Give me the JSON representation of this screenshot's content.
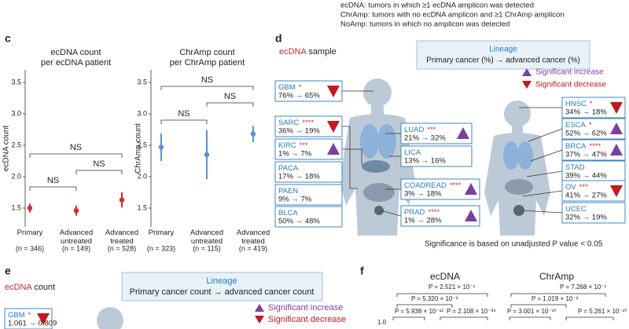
{
  "notes": [
    "ecDNA: tumors in which ≥1 ecDNA amplicon was detected",
    "ChrAmp: tumors with no ecDNA amplicon and ≥1 ChrAmp amplicon",
    "NoAmp: tumors in which no amplicon was detected"
  ],
  "panels": {
    "c": "c",
    "d": "d",
    "e": "e",
    "f": "f"
  },
  "chart_data": [
    {
      "type": "errorbar",
      "title": [
        "ecDNA count",
        "per ecDNA patient"
      ],
      "y_label": "ecDNA count",
      "color": "#e0262b",
      "categories": [
        "Primary",
        "Advanced untreated",
        "Advanced treated"
      ],
      "n_labels": [
        "(n = 346)",
        "(n = 149)",
        "(n = 528)"
      ],
      "values": [
        1.5,
        1.46,
        1.63
      ],
      "errors": [
        0.07,
        0.08,
        0.12
      ],
      "ylim": [
        1.2,
        3.7
      ],
      "yticks": [
        1.5,
        {
          "value": 2,
          "label": "2.0"
        },
        2.5,
        {
          "value": 3,
          "label": "3.0"
        },
        3.5
      ],
      "annotations": [
        "NS",
        "NS",
        "NS"
      ]
    },
    {
      "type": "errorbar",
      "title": [
        "ChrAmp count",
        "per ChrAmp patient"
      ],
      "y_label": "ChrAmp count",
      "color": "#5b8fd9",
      "categories": [
        "Primary",
        "Advanced untreated",
        "Advanced treated"
      ],
      "n_labels": [
        "(n = 323)",
        "(n = 115)",
        "(n = 419)"
      ],
      "values": [
        2.47,
        2.35,
        2.68
      ],
      "errors": [
        0.22,
        0.39,
        0.13
      ],
      "ylim": [
        1.2,
        3.7
      ],
      "yticks": [
        1.5,
        {
          "value": 2,
          "label": "2.0"
        },
        2.5,
        {
          "value": 3,
          "label": "3.0"
        },
        3.5
      ],
      "annotations": [
        "NS",
        "NS",
        "NS"
      ]
    }
  ],
  "panel_d": {
    "sample": [
      "ecDNA",
      "sample"
    ],
    "lineage_title": "Lineage",
    "lineage_text": "Primary cancer (%) → advanced cancer (%)",
    "legend": [
      "Significant increase",
      "Significant decrease"
    ],
    "footnote": "Significance is based on unadjusted P value < 0.05",
    "cancers": [
      {
        "name": "GBM",
        "stars": "*",
        "change": "76% → 65%",
        "direction": "decrease"
      },
      {
        "name": "SARC",
        "stars": "****",
        "change": "36% → 19%",
        "direction": "decrease"
      },
      {
        "name": "KIRC",
        "stars": "***",
        "change": "1% → 7%",
        "direction": "increase"
      },
      {
        "name": "PACA",
        "change": "17% → 18%"
      },
      {
        "name": "PAEN",
        "change": "9% → 7%"
      },
      {
        "name": "BLCA",
        "change": "50% → 48%"
      },
      {
        "name": "LUAD",
        "stars": "***",
        "change": "21% → 32%",
        "direction": "increase"
      },
      {
        "name": "LICA",
        "change": "13% → 16%"
      },
      {
        "name": "COADREAD",
        "stars": "****",
        "change": "3% → 18%",
        "direction": "increase"
      },
      {
        "name": "PRAD",
        "stars": "****",
        "change": "1% → 28%",
        "direction": "increase"
      },
      {
        "name": "HNSC",
        "stars": "*",
        "change": "34% → 18%",
        "direction": "decrease"
      },
      {
        "name": "ESCA",
        "stars": "*",
        "change": "52% → 62%",
        "direction": "increase"
      },
      {
        "name": "BRCA",
        "stars": "****",
        "change": "37% → 47%",
        "direction": "increase"
      },
      {
        "name": "STAD",
        "change": "39% → 44%"
      },
      {
        "name": "OV",
        "stars": "***",
        "change": "41% → 27%",
        "direction": "decrease"
      },
      {
        "name": "UCEC",
        "change": "32% → 19%"
      }
    ]
  },
  "panel_e": {
    "title": [
      "ecDNA",
      "count"
    ],
    "lineage_title": "Lineage",
    "lineage_text": "Primary cancer count → advanced cancer count",
    "legend": [
      "Significant increase",
      "Significant decrease"
    ],
    "cancers": [
      {
        "name": "GBM",
        "stars": "*",
        "change": "1.061 → 0.809",
        "direction": "decrease"
      }
    ]
  },
  "panel_f": {
    "groups": [
      "ecDNA",
      "ChrAmp"
    ],
    "p_values": [
      "P = 2.521 × 10⁻¹",
      "P = 5.320 × 10⁻³",
      "P = 5.938 × 10⁻¹²",
      "P = 2.108 × 10⁻³⁹",
      "P = 7.268 × 10⁻¹",
      "P = 1.019 × 10⁻²",
      "P = 3.001 × 10⁻¹⁰",
      "P = 5.261 × 10⁻¹⁰"
    ],
    "ytick": "1.0"
  }
}
